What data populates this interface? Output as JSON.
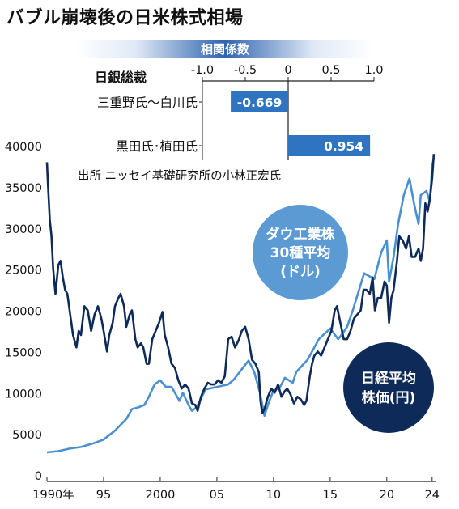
{
  "title": "バブル崩壊後の日米株式相場",
  "corr_panel": {
    "header": "相関係数",
    "row_header": "日銀総裁",
    "axis_ticks": [
      "-1.0",
      "-0.5",
      "0",
      "0.5",
      "1.0"
    ],
    "rows": [
      {
        "label": "三重野氏〜白川氏",
        "value": -0.669,
        "value_label": "-0.669"
      },
      {
        "label": "黒田氏･植田氏",
        "value": 0.954,
        "value_label": "0.954"
      }
    ]
  },
  "source": "出所 ニッセイ基礎研究所の小林正宏氏",
  "bubbles": {
    "dow": [
      "ダウ工業株",
      "30種平均",
      "(ドル)"
    ],
    "nikkei": [
      "日経平均",
      "株価(円)"
    ]
  },
  "colors": {
    "dow": "#4a90d0",
    "nikkei": "#0e2a58",
    "bar": "#2f74c0",
    "header_band": "#2f64b0"
  },
  "chart_data": {
    "type": "line",
    "title": "バブル崩壊後の日米株式相場",
    "xlabel": "",
    "ylabel": "",
    "x_tick_labels": [
      "1990年",
      "95",
      "2000",
      "05",
      "10",
      "15",
      "20",
      "24"
    ],
    "x_ticks": [
      1990,
      1995,
      2000,
      2005,
      2010,
      2015,
      2020,
      2024
    ],
    "y_ticks": [
      0,
      5000,
      10000,
      15000,
      20000,
      25000,
      30000,
      35000,
      40000
    ],
    "ylim": [
      0,
      40000
    ],
    "xlim": [
      1990,
      2024.3
    ],
    "series": [
      {
        "name": "日経平均株価(円)",
        "x": [
          1990.0,
          1990.1,
          1990.25,
          1990.4,
          1990.55,
          1990.75,
          1991.0,
          1991.2,
          1991.4,
          1991.6,
          1991.8,
          1992.0,
          1992.3,
          1992.6,
          1992.8,
          1993.0,
          1993.3,
          1993.6,
          1993.9,
          1994.2,
          1994.5,
          1994.8,
          1995.0,
          1995.3,
          1995.5,
          1995.8,
          1996.0,
          1996.3,
          1996.5,
          1996.8,
          1997.0,
          1997.3,
          1997.5,
          1997.8,
          1998.0,
          1998.3,
          1998.5,
          1998.8,
          1999.0,
          1999.3,
          1999.6,
          1999.9,
          2000.2,
          2000.4,
          2000.7,
          2001.0,
          2001.3,
          2001.6,
          2001.9,
          2002.2,
          2002.5,
          2002.8,
          2003.1,
          2003.3,
          2003.6,
          2003.9,
          2004.2,
          2004.5,
          2004.8,
          2005.1,
          2005.4,
          2005.7,
          2006.0,
          2006.3,
          2006.6,
          2006.9,
          2007.2,
          2007.5,
          2007.8,
          2008.1,
          2008.4,
          2008.7,
          2008.85,
          2009.0,
          2009.2,
          2009.5,
          2009.8,
          2010.1,
          2010.4,
          2010.7,
          2011.0,
          2011.2,
          2011.5,
          2011.8,
          2012.1,
          2012.4,
          2012.7,
          2012.9,
          2013.2,
          2013.4,
          2013.6,
          2013.9,
          2014.2,
          2014.5,
          2014.8,
          2015.1,
          2015.4,
          2015.6,
          2015.9,
          2016.2,
          2016.5,
          2016.8,
          2017.1,
          2017.4,
          2017.7,
          2017.95,
          2018.2,
          2018.5,
          2018.75,
          2018.95,
          2019.2,
          2019.5,
          2019.8,
          2020.0,
          2020.2,
          2020.4,
          2020.6,
          2020.9,
          2021.1,
          2021.4,
          2021.7,
          2021.95,
          2022.2,
          2022.5,
          2022.8,
          2023.0,
          2023.2,
          2023.4,
          2023.6,
          2023.8,
          2024.0,
          2024.15
        ],
        "values": [
          38000,
          35000,
          31000,
          29000,
          25000,
          22000,
          25500,
          26000,
          24000,
          22500,
          22000,
          20000,
          17000,
          15500,
          17500,
          17000,
          20500,
          20000,
          17500,
          19500,
          20500,
          19000,
          17500,
          15000,
          17000,
          18500,
          20500,
          21500,
          22000,
          20500,
          18000,
          19500,
          20000,
          16500,
          15500,
          16000,
          15500,
          13500,
          13500,
          16500,
          17500,
          18500,
          19800,
          17000,
          15500,
          13500,
          13000,
          11500,
          10500,
          11000,
          10500,
          8700,
          8500,
          7800,
          9500,
          10500,
          11200,
          11000,
          11000,
          11500,
          11200,
          12000,
          16500,
          16800,
          15500,
          16300,
          17500,
          18000,
          16500,
          14000,
          13500,
          12500,
          9000,
          7500,
          8000,
          9500,
          10500,
          10000,
          11000,
          9500,
          10200,
          10500,
          9800,
          8700,
          9500,
          9200,
          8500,
          9000,
          12000,
          13500,
          14500,
          15000,
          14500,
          15500,
          16500,
          17500,
          20000,
          20500,
          18500,
          16500,
          16500,
          17500,
          19000,
          19500,
          20000,
          22500,
          22500,
          22000,
          24000,
          20000,
          21500,
          21500,
          23500,
          23000,
          18500,
          21500,
          22500,
          26000,
          29000,
          28500,
          27500,
          29000,
          26500,
          26500,
          27500,
          26000,
          27500,
          33000,
          32000,
          33500,
          36000,
          39000
        ]
      },
      {
        "name": "ダウ工業株30種平均(ドル)",
        "x": [
          1990.0,
          1991.0,
          1992.0,
          1993.0,
          1994.0,
          1995.0,
          1996.0,
          1997.0,
          1997.5,
          1998.0,
          1998.6,
          1999.0,
          1999.5,
          2000.0,
          2000.5,
          2001.0,
          2001.7,
          2002.0,
          2002.5,
          2002.8,
          2003.2,
          2004.0,
          2005.0,
          2006.0,
          2006.5,
          2007.0,
          2007.8,
          2008.3,
          2008.8,
          2009.2,
          2009.5,
          2010.0,
          2010.5,
          2011.0,
          2011.7,
          2012.0,
          2013.0,
          2014.0,
          2015.0,
          2015.7,
          2016.0,
          2016.5,
          2017.0,
          2018.0,
          2018.9,
          2019.5,
          2020.0,
          2020.2,
          2020.6,
          2021.0,
          2021.5,
          2022.0,
          2022.4,
          2022.8,
          2023.0,
          2023.5,
          2023.8,
          2024.0,
          2024.15
        ],
        "values": [
          2750,
          2900,
          3200,
          3400,
          3800,
          4300,
          5400,
          6800,
          8000,
          8200,
          8500,
          9500,
          11000,
          11500,
          10700,
          10700,
          9000,
          10000,
          8500,
          7800,
          8200,
          10400,
          10700,
          11000,
          11600,
          12500,
          13900,
          12500,
          10000,
          7200,
          8500,
          10300,
          10500,
          11800,
          11200,
          12500,
          14000,
          16500,
          17800,
          16500,
          17000,
          18000,
          20000,
          24500,
          23800,
          27000,
          28500,
          23500,
          26500,
          30500,
          34000,
          36000,
          33000,
          30500,
          34000,
          34500,
          33200,
          37500,
          38500
        ]
      }
    ]
  }
}
